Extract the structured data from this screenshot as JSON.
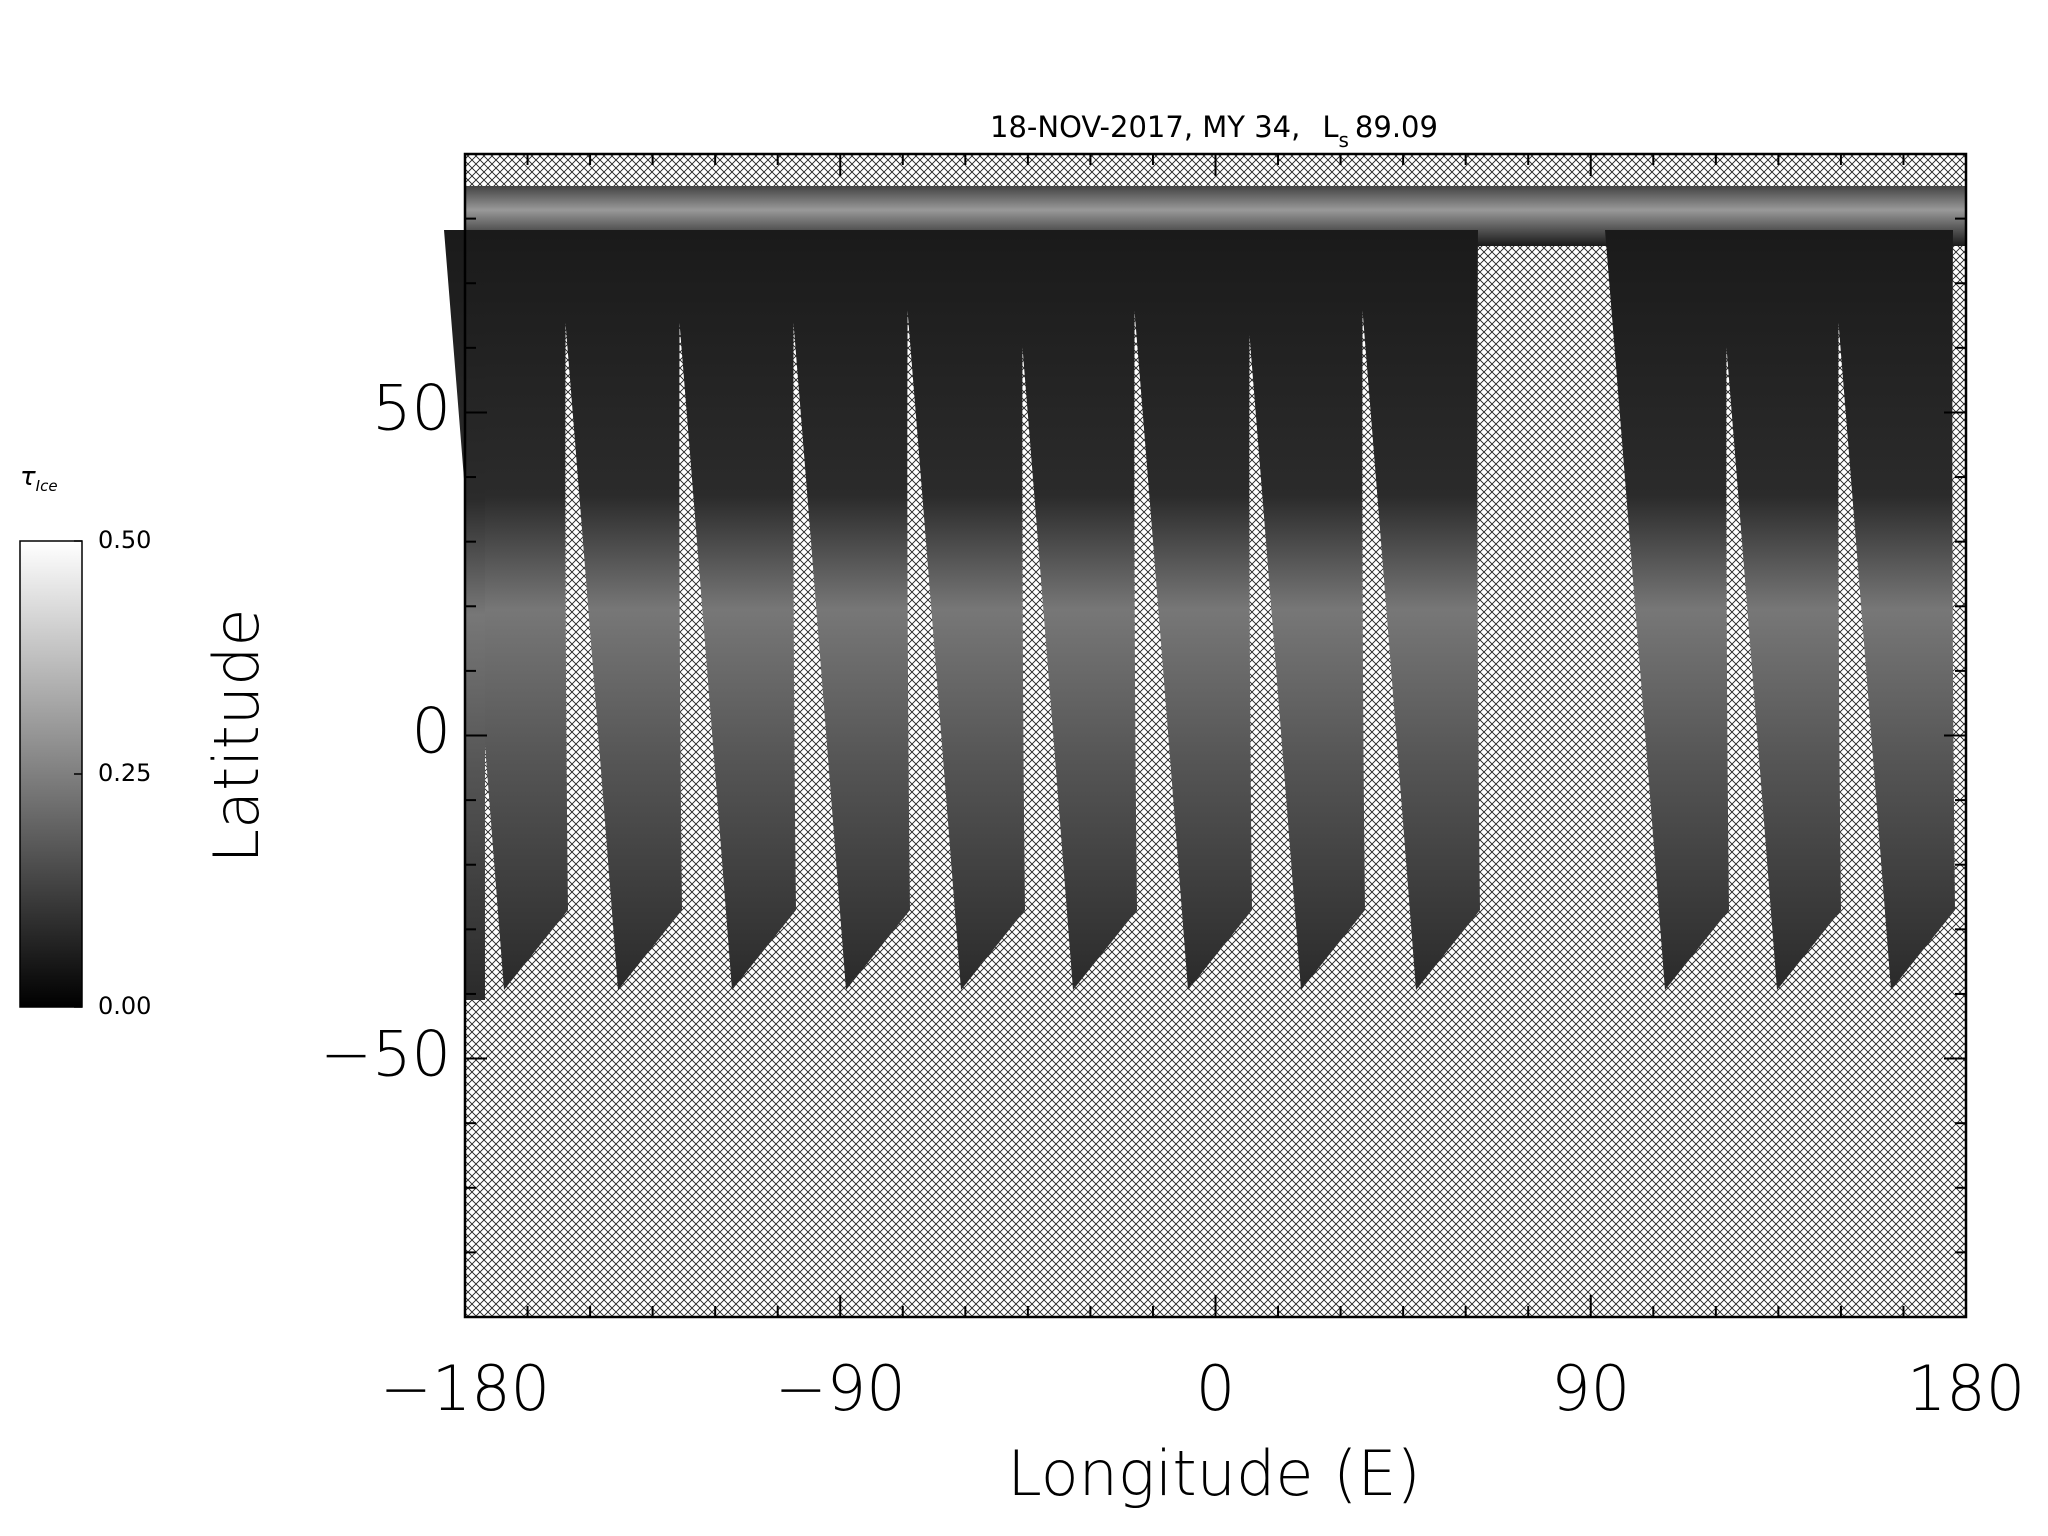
{
  "chart_data": {
    "type": "map",
    "title": {
      "main": "18-NOV-2017, MY 34,",
      "ls_symbol": "L",
      "ls_subscript": "s",
      "ls_value": "89.09"
    },
    "xlabel": "Longitude (E)",
    "ylabel": "Latitude",
    "xlim": [
      -180,
      180
    ],
    "ylim": [
      -90,
      90
    ],
    "xticks": [
      {
        "value": -180,
        "label": "−180"
      },
      {
        "value": -90,
        "label": "−90"
      },
      0,
      90,
      180
    ],
    "yticks": [
      {
        "value": -50,
        "label": "−50"
      },
      0,
      50
    ],
    "xminorticks": [
      -165,
      -150,
      -135,
      -120,
      -105,
      -75,
      -60,
      -45,
      -30,
      -15,
      15,
      30,
      45,
      60,
      75,
      105,
      120,
      135,
      150,
      165
    ],
    "yminorticks": [
      -80,
      -70,
      -60,
      -40,
      -30,
      -20,
      -10,
      10,
      20,
      30,
      40,
      60,
      70,
      80
    ],
    "colorbar": {
      "label": "τ",
      "label_subscript": "Ice",
      "lim": [
        0,
        0.5
      ],
      "ticks": [
        {
          "value": 0,
          "label": "0.00"
        },
        {
          "value": 0.25,
          "label": "0.25"
        },
        {
          "value": 0.5,
          "label": "0.50"
        }
      ],
      "colors": [
        "#000000",
        "#ffffff"
      ]
    }
  }
}
